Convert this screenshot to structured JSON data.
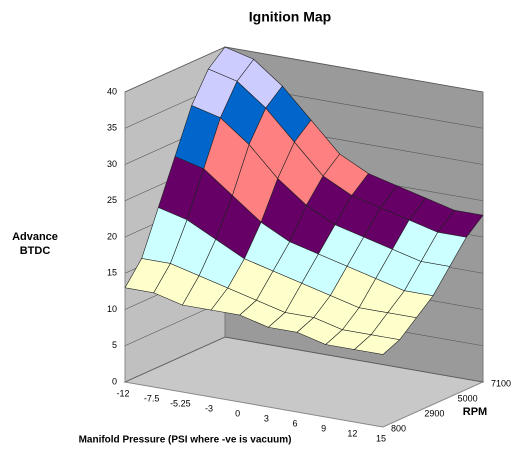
{
  "chart_data": {
    "type": "surface",
    "title": "Ignition Map",
    "zlabel": "Advance BTDC",
    "xlabel": "Manifold Pressure (PSI where -ve is vacuum)",
    "ylabel": "RPM",
    "categories": [
      -12,
      -7.5,
      -5.25,
      -3,
      0,
      3,
      6,
      9,
      12,
      15
    ],
    "depth_categories": [
      800,
      null,
      2900,
      null,
      5000,
      null,
      7100
    ],
    "z": [
      [
        13,
        13,
        12,
        12,
        12,
        11,
        11,
        10,
        10,
        10
      ],
      [
        16,
        16,
        15,
        14,
        13,
        12,
        12,
        11,
        11,
        11
      ],
      [
        22,
        21,
        19,
        17,
        16,
        15,
        14,
        13,
        13,
        13
      ],
      [
        28,
        27,
        24,
        21,
        19,
        18,
        17,
        16,
        15,
        15
      ],
      [
        34,
        33,
        30,
        26,
        23,
        21,
        20,
        19,
        18,
        18
      ],
      [
        38,
        37,
        34,
        30,
        26,
        24,
        23,
        22,
        21,
        21
      ],
      [
        40,
        39,
        36,
        32,
        28,
        26,
        25,
        24,
        23,
        23
      ]
    ],
    "zlim": [
      0,
      40
    ],
    "zticks": [
      0,
      5,
      10,
      15,
      20,
      25,
      30,
      35,
      40
    ],
    "band_colors": [
      "#9999ff",
      "#993366",
      "#ffffcc",
      "#ccffff",
      "#660066",
      "#ff8080",
      "#0066cc",
      "#ccccff"
    ],
    "grid": true
  }
}
